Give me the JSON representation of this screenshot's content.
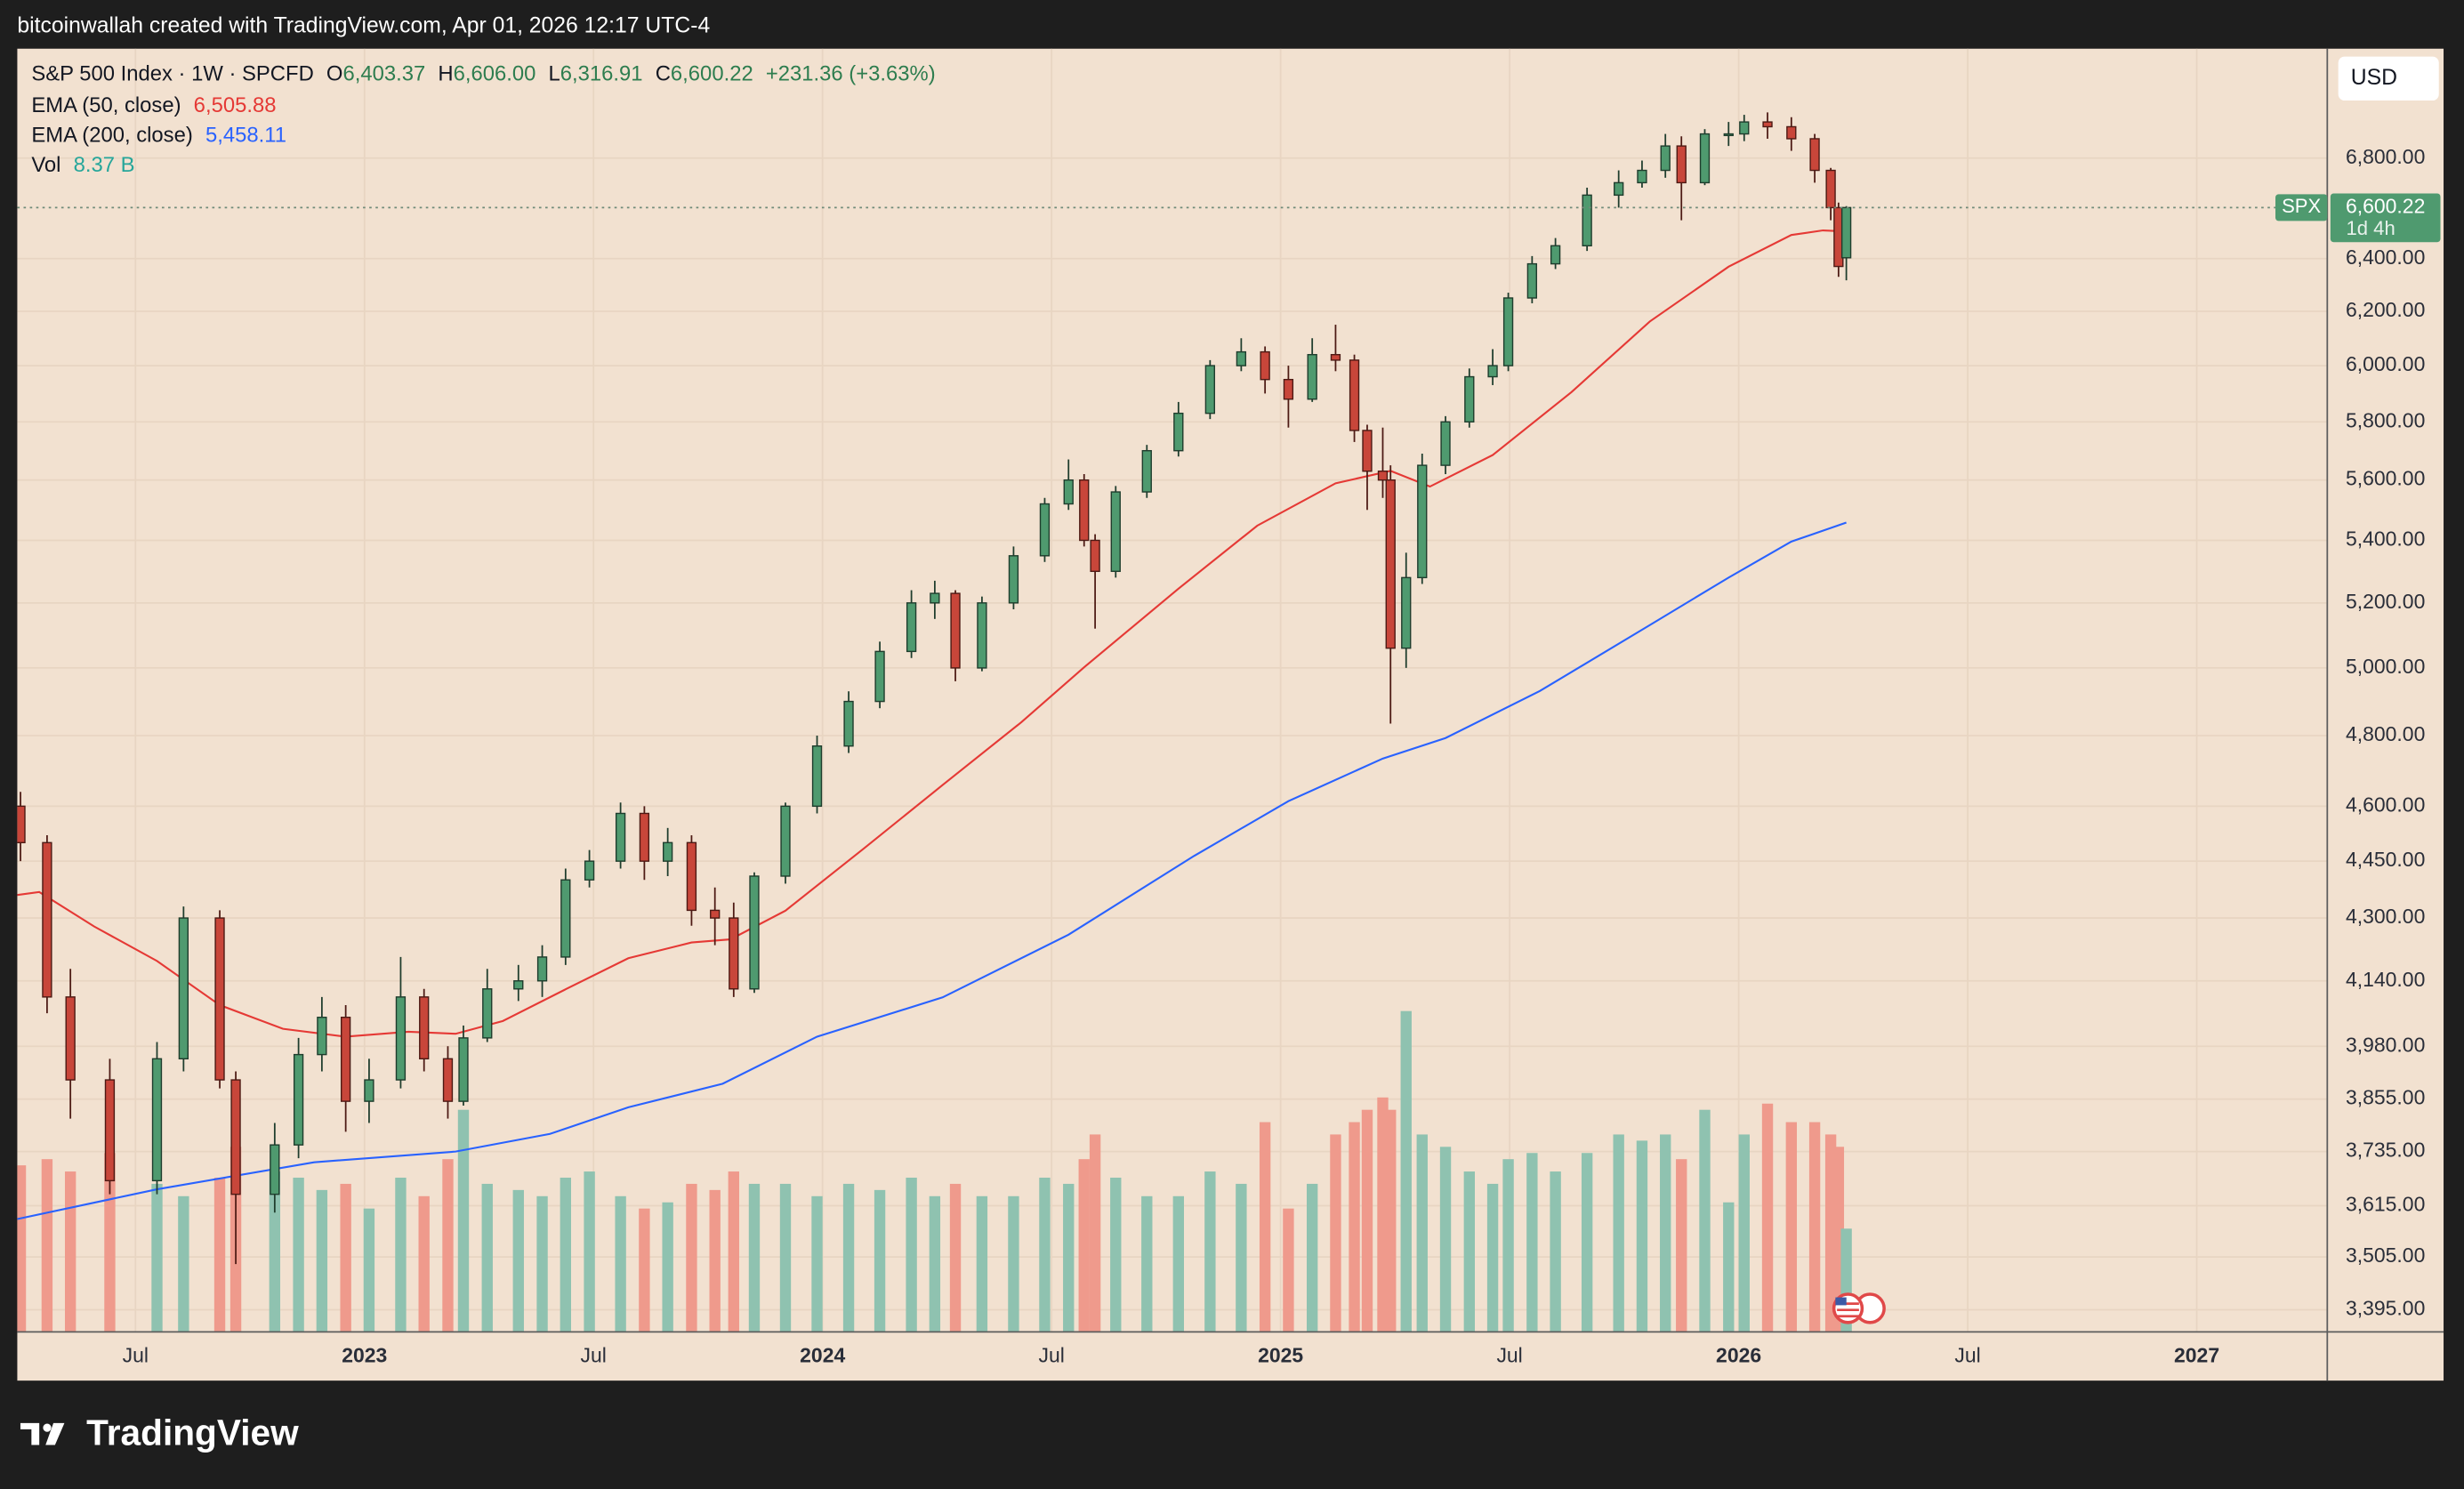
{
  "header": {
    "attribution": "bitcoinwallah created with TradingView.com, Apr 01, 2026 12:17 UTC-4"
  },
  "footer": {
    "brand": "TradingView"
  },
  "legend": {
    "symbol": "S&P 500 Index · 1W · SPCFD",
    "ohlc": [
      {
        "key": "O",
        "value": "6,403.37"
      },
      {
        "key": "H",
        "value": "6,606.00"
      },
      {
        "key": "L",
        "value": "6,316.91"
      },
      {
        "key": "C",
        "value": "6,600.22"
      }
    ],
    "change": "+231.36 (+3.63%)",
    "value_color": "#2e7d4f"
  },
  "currency": "USD",
  "chart_data": {
    "type": "candlestick",
    "log_scale": true,
    "grid": true,
    "up_color": "#4f9a6f",
    "down_color": "#c8463a",
    "volume_up_color": "#8fc2b0",
    "volume_down_color": "#ef9a8c",
    "xlim": [
      2022.242,
      2027.285
    ],
    "xticks": [
      {
        "value": 2022.5,
        "label": "Jul"
      },
      2023,
      {
        "value": 2023.5,
        "label": "Jul"
      },
      2024,
      {
        "value": 2024.5,
        "label": "Jul"
      },
      2025,
      {
        "value": 2025.5,
        "label": "Jul"
      },
      2026,
      {
        "value": 2026.5,
        "label": "Jul"
      },
      2027
    ],
    "ylim": [
      3350,
      7264
    ],
    "yticks": [
      {
        "value": 3395,
        "label": "3,395.00"
      },
      {
        "value": 3505,
        "label": "3,505.00"
      },
      {
        "value": 3615,
        "label": "3,615.00"
      },
      {
        "value": 3735,
        "label": "3,735.00"
      },
      {
        "value": 3855,
        "label": "3,855.00"
      },
      {
        "value": 3980,
        "label": "3,980.00"
      },
      {
        "value": 4140,
        "label": "4,140.00"
      },
      {
        "value": 4300,
        "label": "4,300.00"
      },
      {
        "value": 4450,
        "label": "4,450.00"
      },
      {
        "value": 4600,
        "label": "4,600.00"
      },
      {
        "value": 4800,
        "label": "4,800.00"
      },
      {
        "value": 5000,
        "label": "5,000.00"
      },
      {
        "value": 5200,
        "label": "5,200.00"
      },
      {
        "value": 5400,
        "label": "5,400.00"
      },
      {
        "value": 5600,
        "label": "5,600.00"
      },
      {
        "value": 5800,
        "label": "5,800.00"
      },
      {
        "value": 6000,
        "label": "6,000.00"
      },
      {
        "value": 6200,
        "label": "6,200.00"
      },
      {
        "value": 6400,
        "label": "6,400.00"
      },
      {
        "value": 6800,
        "label": "6,800.00"
      }
    ],
    "volume_lim": [
      0,
      35
    ],
    "x": [
      2022.249,
      2022.307,
      2022.358,
      2022.444,
      2022.547,
      2022.605,
      2022.684,
      2022.719,
      2022.804,
      2022.856,
      2022.907,
      2022.959,
      2023.01,
      2023.079,
      2023.13,
      2023.182,
      2023.216,
      2023.268,
      2023.336,
      2023.388,
      2023.439,
      2023.491,
      2023.559,
      2023.611,
      2023.662,
      2023.714,
      2023.765,
      2023.806,
      2023.851,
      2023.919,
      2023.988,
      2024.057,
      2024.125,
      2024.194,
      2024.245,
      2024.29,
      2024.348,
      2024.417,
      2024.485,
      2024.537,
      2024.571,
      2024.595,
      2024.64,
      2024.708,
      2024.777,
      2024.846,
      2024.914,
      2024.966,
      2025.017,
      2025.069,
      2025.12,
      2025.161,
      2025.189,
      2025.223,
      2025.24,
      2025.274,
      2025.309,
      2025.36,
      2025.412,
      2025.463,
      2025.497,
      2025.549,
      2025.6,
      2025.669,
      2025.738,
      2025.789,
      2025.84,
      2025.875,
      2025.926,
      2025.978,
      2026.012,
      2026.063,
      2026.115,
      2026.166,
      2026.201,
      2026.218,
      2026.235
    ],
    "open": [
      4600,
      4500,
      4100,
      3900,
      3670,
      3950,
      4300,
      3900,
      3640,
      3750,
      3960,
      4050,
      3850,
      3900,
      4100,
      3950,
      3850,
      4000,
      4120,
      4140,
      4200,
      4400,
      4450,
      4580,
      4450,
      4500,
      4320,
      4300,
      4120,
      4410,
      4600,
      4770,
      4900,
      5050,
      5200,
      5230,
      5000,
      5200,
      5350,
      5520,
      5600,
      5400,
      5300,
      5560,
      5700,
      5830,
      6000,
      6050,
      5950,
      5880,
      6040,
      6020,
      5770,
      5630,
      5600,
      5060,
      5280,
      5650,
      5800,
      5960,
      6000,
      6250,
      6380,
      6450,
      6650,
      6700,
      6750,
      6850,
      6700,
      6900,
      6900,
      6950,
      6930,
      6880,
      6750,
      6600,
      6403.37
    ],
    "high": [
      4640,
      4520,
      4170,
      3950,
      3990,
      4330,
      4320,
      3920,
      3800,
      4000,
      4100,
      4080,
      3950,
      4200,
      4120,
      3980,
      4030,
      4170,
      4180,
      4230,
      4430,
      4480,
      4610,
      4600,
      4540,
      4520,
      4380,
      4340,
      4420,
      4610,
      4800,
      4930,
      5080,
      5240,
      5270,
      5240,
      5220,
      5380,
      5540,
      5670,
      5620,
      5420,
      5580,
      5720,
      5870,
      6020,
      6100,
      6070,
      6000,
      6100,
      6150,
      6040,
      5790,
      5780,
      5650,
      5360,
      5690,
      5820,
      5990,
      6060,
      6270,
      6410,
      6480,
      6680,
      6750,
      6790,
      6900,
      6890,
      6920,
      6950,
      6980,
      6990,
      6970,
      6900,
      6760,
      6620,
      6606
    ],
    "low": [
      4450,
      4060,
      3810,
      3640,
      3640,
      3920,
      3880,
      3490,
      3600,
      3720,
      3920,
      3780,
      3800,
      3880,
      3920,
      3810,
      3840,
      3990,
      4090,
      4100,
      4180,
      4380,
      4430,
      4400,
      4410,
      4280,
      4230,
      4100,
      4110,
      4390,
      4580,
      4750,
      4880,
      5030,
      5150,
      4960,
      4990,
      5180,
      5330,
      5500,
      5380,
      5120,
      5280,
      5540,
      5680,
      5810,
      5980,
      5900,
      5780,
      5870,
      5980,
      5730,
      5500,
      5540,
      4835,
      5000,
      5260,
      5620,
      5780,
      5930,
      5980,
      6230,
      6360,
      6430,
      6600,
      6680,
      6720,
      6550,
      6690,
      6850,
      6870,
      6880,
      6830,
      6700,
      6550,
      6330,
      6316.91
    ],
    "close": [
      4500,
      4100,
      3900,
      3670,
      3950,
      4300,
      3900,
      3640,
      3750,
      3960,
      4050,
      3850,
      3900,
      4100,
      3950,
      3850,
      4000,
      4120,
      4140,
      4200,
      4400,
      4450,
      4580,
      4450,
      4500,
      4320,
      4300,
      4120,
      4410,
      4600,
      4770,
      4900,
      5050,
      5200,
      5230,
      5000,
      5200,
      5350,
      5520,
      5600,
      5400,
      5300,
      5560,
      5700,
      5830,
      6000,
      6050,
      5950,
      5880,
      6040,
      6020,
      5770,
      5630,
      5600,
      5060,
      5280,
      5650,
      5800,
      5960,
      6000,
      6250,
      6380,
      6450,
      6650,
      6700,
      6750,
      6850,
      6700,
      6900,
      6900,
      6950,
      6930,
      6880,
      6750,
      6600,
      6370,
      6600.22
    ],
    "volume": [
      13.5,
      14,
      13,
      14.5,
      12,
      11,
      12.5,
      15,
      13,
      12.5,
      11.5,
      12,
      10,
      12.5,
      11,
      14,
      18,
      12,
      11.5,
      11,
      12.5,
      13,
      11,
      10,
      10.5,
      12,
      11.5,
      13,
      12,
      12,
      11,
      12,
      11.5,
      12.5,
      11,
      12,
      11,
      11,
      12.5,
      12,
      14,
      16,
      12.5,
      11,
      11,
      13,
      12,
      17,
      10,
      12,
      16,
      17,
      18,
      19,
      18,
      26,
      16,
      15,
      13,
      12,
      14,
      14.5,
      13,
      14.5,
      16,
      15.5,
      16,
      14,
      18,
      10.5,
      16,
      18.5,
      17,
      17,
      16,
      15,
      8.37
    ],
    "volume_name": "Vol",
    "volume_label": "8.37 B",
    "volume_label_color": "#26a69a",
    "symbol_tag": "SPX",
    "last_label": "6,600.22",
    "countdown": "1d 4h",
    "lines": [
      {
        "name": "EMA (50, close)",
        "color": "#e53935",
        "last_label": "6,505.88",
        "x": [
          2022.242,
          2022.29,
          2022.41,
          2022.547,
          2022.684,
          2022.822,
          2022.959,
          2023.096,
          2023.199,
          2023.302,
          2023.439,
          2023.576,
          2023.714,
          2023.799,
          2023.919,
          2024.091,
          2024.262,
          2024.434,
          2024.571,
          2024.777,
          2024.949,
          2025.12,
          2025.24,
          2025.326,
          2025.463,
          2025.635,
          2025.806,
          2025.978,
          2026.115,
          2026.184,
          2026.235
        ],
        "values": [
          4360,
          4368,
          4278,
          4190,
          4080,
          4022,
          4003,
          4015,
          4010,
          4041,
          4119,
          4197,
          4237,
          4245,
          4319,
          4485,
          4659,
          4839,
          5002,
          5245,
          5448,
          5589,
          5631,
          5578,
          5685,
          5905,
          6162,
          6369,
          6492,
          6510,
          6505.88
        ]
      },
      {
        "name": "EMA (200, close)",
        "color": "#2962ff",
        "last_label": "5,458.11",
        "x": [
          2022.242,
          2022.547,
          2022.89,
          2023.199,
          2023.405,
          2023.576,
          2023.782,
          2023.988,
          2024.262,
          2024.537,
          2024.811,
          2025.017,
          2025.223,
          2025.36,
          2025.566,
          2025.806,
          2025.978,
          2026.115,
          2026.235
        ],
        "values": [
          3586,
          3651,
          3711,
          3735,
          3775,
          3836,
          3891,
          4003,
          4099,
          4257,
          4464,
          4614,
          4734,
          4793,
          4931,
          5131,
          5280,
          5396,
          5458.11
        ]
      }
    ]
  }
}
